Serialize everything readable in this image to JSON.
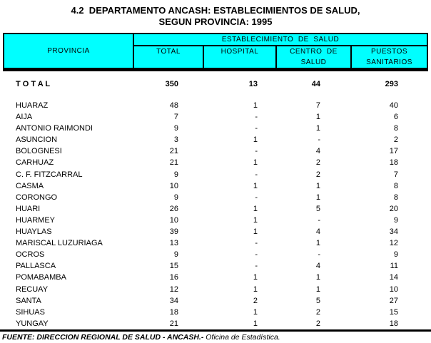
{
  "page": {
    "title_line1": "4.2  DEPARTAMENTO ANCASH: ESTABLECIMIENTOS DE SALUD,",
    "title_line2": "SEGUN PROVINCIA: 1995"
  },
  "colors": {
    "header_bg": "#00ffff",
    "border": "#000000",
    "page_bg": "#ffffff"
  },
  "table": {
    "header": {
      "provincia": "PROVINCIA",
      "group": "ESTABLECIMIENTO  DE  SALUD",
      "columns": [
        {
          "line1": "TOTAL",
          "line2": ""
        },
        {
          "line1": "HOSPITAL",
          "line2": ""
        },
        {
          "line1": "CENTRO  DE",
          "line2": "SALUD"
        },
        {
          "line1": "PUESTOS",
          "line2": "SANITARIOS"
        }
      ]
    },
    "total_row": {
      "label": "T O T A L",
      "total": "350",
      "hospital": "13",
      "centro": "44",
      "puestos": "293"
    },
    "rows": [
      {
        "provincia": "HUARAZ",
        "total": "48",
        "hospital": "1",
        "centro": "7",
        "puestos": "40"
      },
      {
        "provincia": "AIJA",
        "total": "7",
        "hospital": "-",
        "centro": "1",
        "puestos": "6"
      },
      {
        "provincia": "ANTONIO RAIMONDI",
        "total": "9",
        "hospital": "-",
        "centro": "1",
        "puestos": "8"
      },
      {
        "provincia": "ASUNCION",
        "total": "3",
        "hospital": "1",
        "centro": "-",
        "puestos": "2"
      },
      {
        "provincia": "BOLOGNESI",
        "total": "21",
        "hospital": "-",
        "centro": "4",
        "puestos": "17"
      },
      {
        "provincia": "CARHUAZ",
        "total": "21",
        "hospital": "1",
        "centro": "2",
        "puestos": "18"
      },
      {
        "provincia": "C. F. FITZCARRAL",
        "total": "9",
        "hospital": "-",
        "centro": "2",
        "puestos": "7"
      },
      {
        "provincia": "CASMA",
        "total": "10",
        "hospital": "1",
        "centro": "1",
        "puestos": "8"
      },
      {
        "provincia": "CORONGO",
        "total": "9",
        "hospital": "-",
        "centro": "1",
        "puestos": "8"
      },
      {
        "provincia": "HUARI",
        "total": "26",
        "hospital": "1",
        "centro": "5",
        "puestos": "20"
      },
      {
        "provincia": "HUARMEY",
        "total": "10",
        "hospital": "1",
        "centro": "-",
        "puestos": "9"
      },
      {
        "provincia": "HUAYLAS",
        "total": "39",
        "hospital": "1",
        "centro": "4",
        "puestos": "34"
      },
      {
        "provincia": "MARISCAL LUZURIAGA",
        "total": "13",
        "hospital": "-",
        "centro": "1",
        "puestos": "12"
      },
      {
        "provincia": "OCROS",
        "total": "9",
        "hospital": "-",
        "centro": "-",
        "puestos": "9"
      },
      {
        "provincia": "PALLASCA",
        "total": "15",
        "hospital": "-",
        "centro": "4",
        "puestos": "11"
      },
      {
        "provincia": "POMABAMBA",
        "total": "16",
        "hospital": "1",
        "centro": "1",
        "puestos": "14"
      },
      {
        "provincia": "RECUAY",
        "total": "12",
        "hospital": "1",
        "centro": "1",
        "puestos": "10"
      },
      {
        "provincia": "SANTA",
        "total": "34",
        "hospital": "2",
        "centro": "5",
        "puestos": "27"
      },
      {
        "provincia": "SIHUAS",
        "total": "18",
        "hospital": "1",
        "centro": "2",
        "puestos": "15"
      },
      {
        "provincia": "YUNGAY",
        "total": "21",
        "hospital": "1",
        "centro": "2",
        "puestos": "18"
      }
    ]
  },
  "footer": {
    "source_label": "FUENTE: DIRECCION REGIONAL DE SALUD - ANCASH.-",
    "source_office": " Oficina de Estadística."
  }
}
